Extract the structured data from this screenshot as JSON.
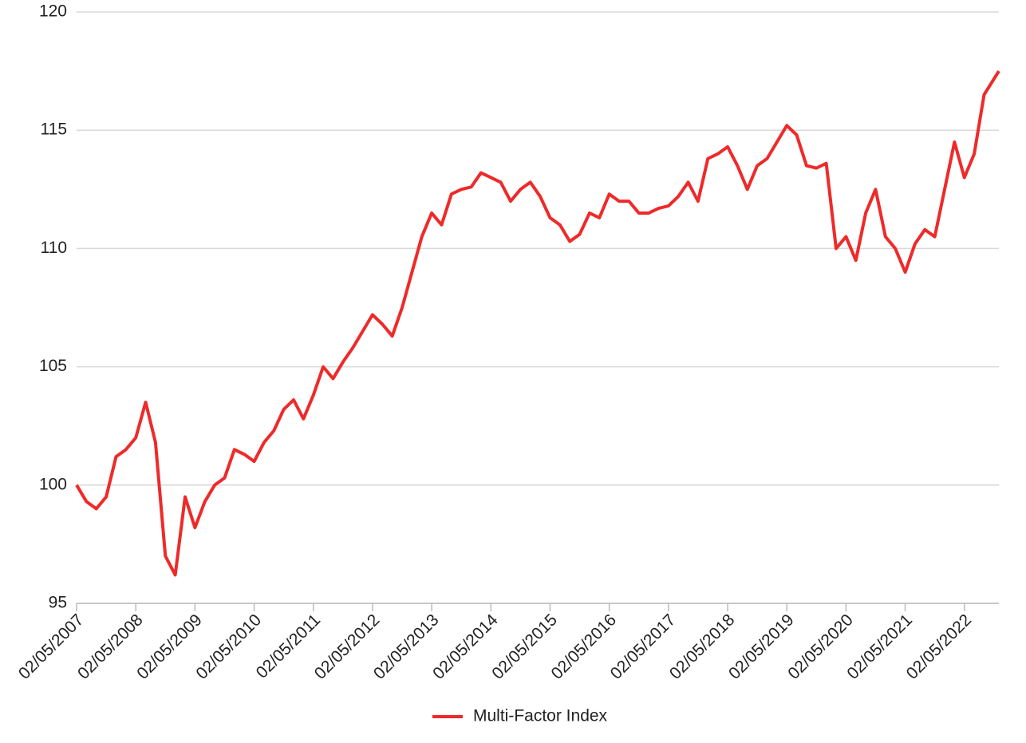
{
  "chart_data": {
    "type": "line",
    "x": [
      "02/05/2007",
      "02/07/2007",
      "02/09/2007",
      "02/11/2007",
      "02/01/2008",
      "02/03/2008",
      "02/05/2008",
      "02/07/2008",
      "02/09/2008",
      "02/11/2008",
      "02/01/2009",
      "02/03/2009",
      "02/05/2009",
      "02/07/2009",
      "02/09/2009",
      "02/11/2009",
      "02/01/2010",
      "02/03/2010",
      "02/05/2010",
      "02/07/2010",
      "02/09/2010",
      "02/11/2010",
      "02/01/2011",
      "02/03/2011",
      "02/05/2011",
      "02/07/2011",
      "02/09/2011",
      "02/11/2011",
      "02/01/2012",
      "02/03/2012",
      "02/05/2012",
      "02/07/2012",
      "02/09/2012",
      "02/11/2012",
      "02/01/2013",
      "02/03/2013",
      "02/05/2013",
      "02/07/2013",
      "02/09/2013",
      "02/11/2013",
      "02/01/2014",
      "02/03/2014",
      "02/05/2014",
      "02/07/2014",
      "02/09/2014",
      "02/11/2014",
      "02/01/2015",
      "02/03/2015",
      "02/05/2015",
      "02/07/2015",
      "02/09/2015",
      "02/11/2015",
      "02/01/2016",
      "02/03/2016",
      "02/05/2016",
      "02/07/2016",
      "02/09/2016",
      "02/11/2016",
      "02/01/2017",
      "02/03/2017",
      "02/05/2017",
      "02/07/2017",
      "02/09/2017",
      "02/11/2017",
      "02/01/2018",
      "02/03/2018",
      "02/05/2018",
      "02/07/2018",
      "02/09/2018",
      "02/11/2018",
      "02/01/2019",
      "02/03/2019",
      "02/05/2019",
      "02/07/2019",
      "02/09/2019",
      "02/11/2019",
      "02/01/2020",
      "02/03/2020",
      "02/05/2020",
      "02/07/2020",
      "02/09/2020",
      "02/11/2020",
      "02/01/2021",
      "02/03/2021",
      "02/05/2021",
      "02/07/2021",
      "02/09/2021",
      "02/11/2021",
      "02/01/2022",
      "02/03/2022",
      "02/05/2022",
      "02/07/2022",
      "02/09/2022",
      "02/12/2022"
    ],
    "series": [
      {
        "name": "Multi-Factor Index",
        "color": "#ee2a2a",
        "values": [
          100,
          99.3,
          99.0,
          99.5,
          101.2,
          101.5,
          102.0,
          103.5,
          101.8,
          97.0,
          96.2,
          99.5,
          98.2,
          99.3,
          100.0,
          100.3,
          101.5,
          101.3,
          101.0,
          101.8,
          102.3,
          103.2,
          103.6,
          102.8,
          103.8,
          105.0,
          104.5,
          105.2,
          105.8,
          106.5,
          107.2,
          106.8,
          106.3,
          107.5,
          109.0,
          110.5,
          111.5,
          111.0,
          112.3,
          112.5,
          112.6,
          113.2,
          113.0,
          112.8,
          112.0,
          112.5,
          112.8,
          112.2,
          111.3,
          111.0,
          110.3,
          110.6,
          111.5,
          111.3,
          112.3,
          112.0,
          112.0,
          111.5,
          111.5,
          111.7,
          111.8,
          112.2,
          112.8,
          112.0,
          113.8,
          114.0,
          114.3,
          113.5,
          112.5,
          113.5,
          113.8,
          114.5,
          115.2,
          114.8,
          113.5,
          113.4,
          113.6,
          110.0,
          110.5,
          109.5,
          111.5,
          112.5,
          110.5,
          110.0,
          109.0,
          110.2,
          110.8,
          110.5,
          112.5,
          114.5,
          113.0,
          114.0,
          116.5,
          117.5
        ]
      }
    ],
    "xlim": [
      "02/05/2007",
      "02/12/2022"
    ],
    "xticks": [
      "02/05/2007",
      "02/05/2008",
      "02/05/2009",
      "02/05/2010",
      "02/05/2011",
      "02/05/2012",
      "02/05/2013",
      "02/05/2014",
      "02/05/2015",
      "02/05/2016",
      "02/05/2017",
      "02/05/2018",
      "02/05/2019",
      "02/05/2020",
      "02/05/2021",
      "02/05/2022"
    ],
    "ylim": [
      95,
      120
    ],
    "yticks": [
      95,
      100,
      105,
      110,
      115,
      120
    ],
    "grid": true,
    "legend": "bottom"
  }
}
